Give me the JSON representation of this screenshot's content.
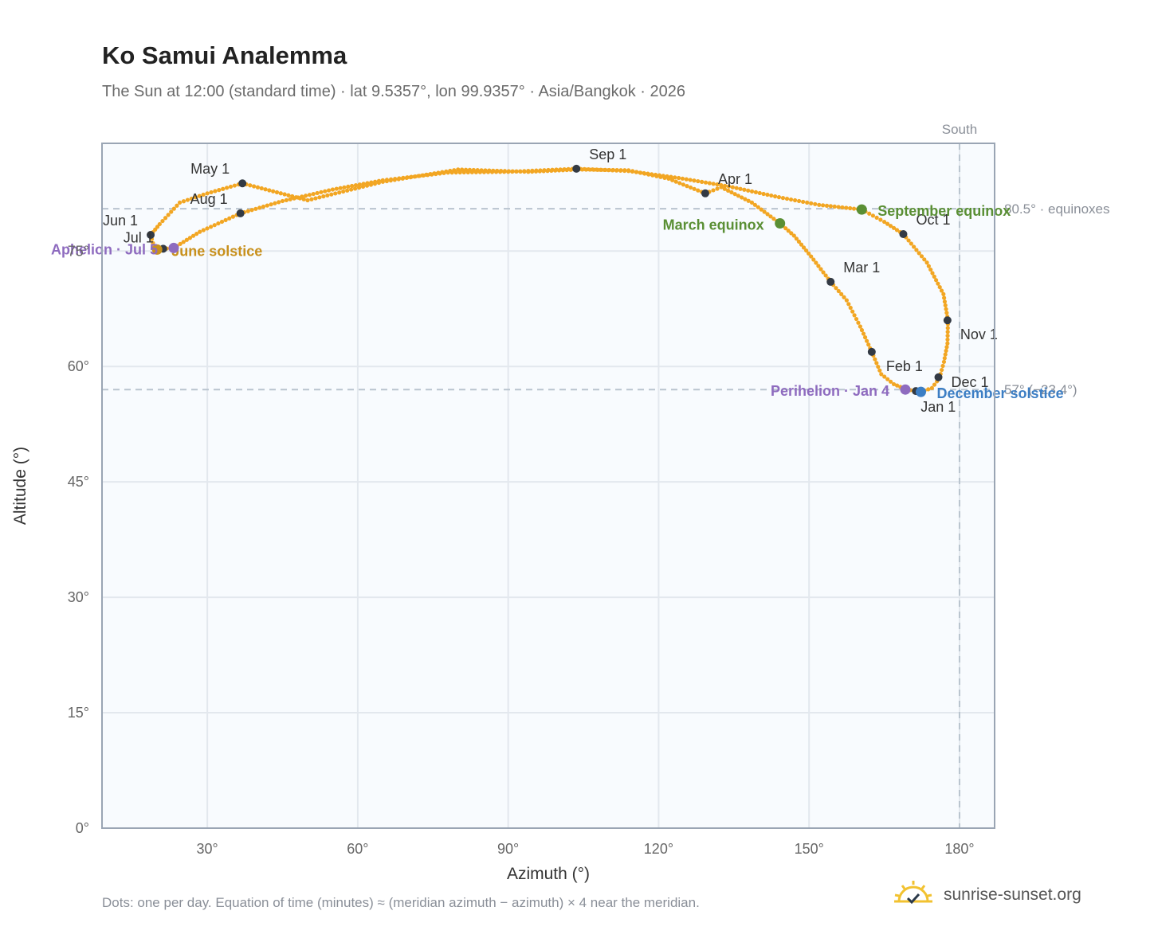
{
  "title": "Ko Samui Analemma",
  "subtitle": "The Sun at 12:00 (standard time) · lat 9.5357°, lon 99.9357° · Asia/Bangkok · 2026",
  "footer_note": "Dots: one per day. Equation of time (minutes) ≈ (meridian azimuth − azimuth) × 4 near the meridian.",
  "brand": {
    "name": "sunrise-sunset.org",
    "icon": "sun-check-icon"
  },
  "colors": {
    "curve": "#f2a623",
    "month_marker": "#333a44",
    "equinox": "#5a8f34",
    "solstice_june": "#c8901c",
    "solstice_december": "#3c7ec4",
    "apsis": "#8e6bbf",
    "reference_line": "#b9c4cf",
    "plot_background": "#f8fbfe",
    "grid": "#e3e8ee",
    "frame": "#9aa5b4"
  },
  "chart_data": {
    "type": "scatter",
    "title": "Ko Samui Analemma",
    "xlabel": "Azimuth (°)",
    "ylabel": "Altitude (°)",
    "xlim": [
      9,
      187
    ],
    "ylim": [
      0,
      89
    ],
    "xticks": [
      30,
      60,
      90,
      120,
      150,
      180
    ],
    "xtick_labels": [
      "30°",
      "60°",
      "90°",
      "120°",
      "150°",
      "180°"
    ],
    "yticks": [
      0,
      15,
      30,
      45,
      60,
      75
    ],
    "ytick_labels": [
      "0°",
      "15°",
      "30°",
      "45°",
      "60°",
      "75°"
    ],
    "grid": true,
    "reference_lines": [
      {
        "orientation": "vertical",
        "value": 180,
        "label": "South"
      },
      {
        "orientation": "horizontal",
        "value": 80.5,
        "label": "80.5° · equinoxes"
      },
      {
        "orientation": "horizontal",
        "value": 57,
        "label": "57° (−23.4°)"
      }
    ],
    "series": [
      {
        "style": "daily-dots",
        "points": [
          [
            172.3,
            56.7
          ],
          [
            169.5,
            57.0
          ],
          [
            166.9,
            57.7
          ],
          [
            164.4,
            59.0
          ],
          [
            162.5,
            61.9
          ],
          [
            160.2,
            65.2
          ],
          [
            157.5,
            68.6
          ],
          [
            154.3,
            71.0
          ],
          [
            150.4,
            74.3
          ],
          [
            147.0,
            77.0
          ],
          [
            144.2,
            78.6
          ],
          [
            138.6,
            81.3
          ],
          [
            132.5,
            83.3
          ],
          [
            129.3,
            82.5
          ],
          [
            122.0,
            84.4
          ],
          [
            114.0,
            85.5
          ],
          [
            104.0,
            85.6
          ],
          [
            94.0,
            85.3
          ],
          [
            80.0,
            85.6
          ],
          [
            65.0,
            84.0
          ],
          [
            50.0,
            81.6
          ],
          [
            37.0,
            83.8
          ],
          [
            30.0,
            82.5
          ],
          [
            24.5,
            81.3
          ],
          [
            20.5,
            78.5
          ],
          [
            18.7,
            77.1
          ],
          [
            19.4,
            75.5
          ],
          [
            20.0,
            75.2
          ],
          [
            21.2,
            75.3
          ],
          [
            23.3,
            75.4
          ],
          [
            28.5,
            77.5
          ],
          [
            36.6,
            79.9
          ],
          [
            45.0,
            81.5
          ],
          [
            55.0,
            83.0
          ],
          [
            65.0,
            84.2
          ],
          [
            78.0,
            85.2
          ],
          [
            90.0,
            85.3
          ],
          [
            103.6,
            85.7
          ],
          [
            114.0,
            85.4
          ],
          [
            124.0,
            84.5
          ],
          [
            134.0,
            83.4
          ],
          [
            144.0,
            82.0
          ],
          [
            152.0,
            81.0
          ],
          [
            160.5,
            80.4
          ],
          [
            165.0,
            78.8
          ],
          [
            168.8,
            77.2
          ],
          [
            173.5,
            73.5
          ],
          [
            176.8,
            69.4
          ],
          [
            177.7,
            66.0
          ],
          [
            177.6,
            63.0
          ],
          [
            176.9,
            60.6
          ],
          [
            176.0,
            58.5
          ],
          [
            174.5,
            57.2
          ],
          [
            172.3,
            56.7
          ]
        ]
      }
    ],
    "month_markers": [
      {
        "label": "Jan 1",
        "x": 171.3,
        "y": 56.8
      },
      {
        "label": "Feb 1",
        "x": 162.5,
        "y": 61.9
      },
      {
        "label": "Mar 1",
        "x": 154.3,
        "y": 71.0
      },
      {
        "label": "Apr 1",
        "x": 129.3,
        "y": 82.5
      },
      {
        "label": "May 1",
        "x": 37.0,
        "y": 83.8
      },
      {
        "label": "Jun 1",
        "x": 18.7,
        "y": 77.1
      },
      {
        "label": "Jul 1",
        "x": 21.2,
        "y": 75.3
      },
      {
        "label": "Aug 1",
        "x": 36.6,
        "y": 79.9
      },
      {
        "label": "Sep 1",
        "x": 103.6,
        "y": 85.7
      },
      {
        "label": "Oct 1",
        "x": 168.8,
        "y": 77.2
      },
      {
        "label": "Nov 1",
        "x": 177.6,
        "y": 66.0
      },
      {
        "label": "Dec 1",
        "x": 175.8,
        "y": 58.6
      }
    ],
    "events": [
      {
        "label": "March equinox",
        "x": 144.2,
        "y": 78.6,
        "kind": "equinox"
      },
      {
        "label": "September equinox",
        "x": 160.5,
        "y": 80.4,
        "kind": "equinox"
      },
      {
        "label": "June solstice",
        "x": 20.0,
        "y": 75.2,
        "kind": "solstice_june"
      },
      {
        "label": "December solstice",
        "x": 172.3,
        "y": 56.7,
        "kind": "solstice_december"
      },
      {
        "label": "Perihelion · Jan 4",
        "x": 169.2,
        "y": 57.0,
        "kind": "apsis"
      },
      {
        "label": "Aphelion · Jul 5",
        "x": 23.3,
        "y": 75.4,
        "kind": "apsis"
      }
    ]
  }
}
